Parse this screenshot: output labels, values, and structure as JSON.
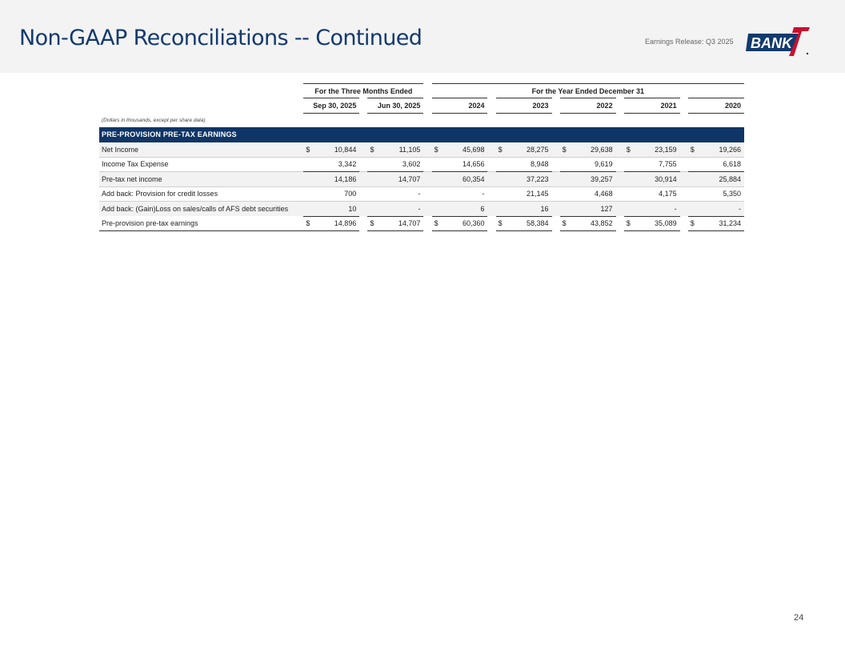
{
  "header": {
    "title": "Non-GAAP Reconciliations -- Continued",
    "release": "Earnings Release: Q3 2025",
    "logo_text": "BANK"
  },
  "table": {
    "groups": {
      "three_months": "For the Three Months Ended",
      "year_ended": "For the Year Ended December 31"
    },
    "periods": [
      "Sep 30, 2025",
      "Jun 30, 2025",
      "2024",
      "2023",
      "2022",
      "2021",
      "2020"
    ],
    "units_note": "(Dollars in thousands, except per share data)",
    "section_title": "PRE-PROVISION PRE-TAX EARNINGS",
    "currency_symbol": "$",
    "rows": [
      {
        "label": "Net Income",
        "values": [
          "10,844",
          "11,105",
          "45,698",
          "28,275",
          "29,638",
          "23,159",
          "19,266"
        ]
      },
      {
        "label": "Income Tax Expense",
        "values": [
          "3,342",
          "3,602",
          "14,656",
          "8,948",
          "9,619",
          "7,755",
          "6,618"
        ]
      },
      {
        "label": "Pre-tax net income",
        "values": [
          "14,186",
          "14,707",
          "60,354",
          "37,223",
          "39,257",
          "30,914",
          "25,884"
        ]
      },
      {
        "label": "Add back: Provision for credit losses",
        "values": [
          "700",
          "-",
          "-",
          "21,145",
          "4,468",
          "4,175",
          "5,350"
        ]
      },
      {
        "label": "Add back: (Gain)Loss on sales/calls of AFS debt securities",
        "values": [
          "10",
          "-",
          "6",
          "16",
          "127",
          "-",
          "-"
        ]
      },
      {
        "label": "Pre-provision pre-tax earnings",
        "values": [
          "14,896",
          "14,707",
          "60,360",
          "58,384",
          "43,852",
          "35,089",
          "31,234"
        ]
      }
    ]
  },
  "footer": {
    "page_number": "24"
  },
  "colors": {
    "title": "#123a6e",
    "section_band": "#0f3566",
    "logo_red": "#c8102e",
    "header_bg": "#f3f3f3"
  }
}
